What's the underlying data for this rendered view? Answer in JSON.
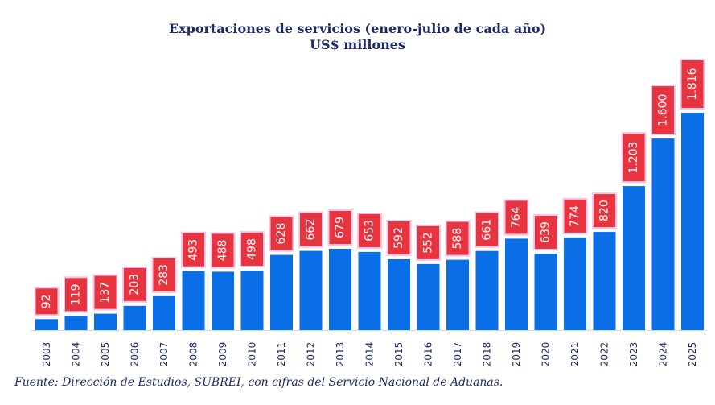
{
  "chart_data": {
    "type": "bar",
    "title": "Exportaciones de servicios (enero-julio de cada año)",
    "subtitle": "US$ millones",
    "categories": [
      "2003",
      "2004",
      "2005",
      "2006",
      "2007",
      "2008",
      "2009",
      "2010",
      "2011",
      "2012",
      "2013",
      "2014",
      "2015",
      "2016",
      "2017",
      "2018",
      "2019",
      "2020",
      "2021",
      "2022",
      "2023",
      "2024",
      "2025"
    ],
    "values": [
      92,
      119,
      137,
      203,
      283,
      493,
      488,
      498,
      628,
      662,
      679,
      653,
      592,
      552,
      588,
      661,
      764,
      639,
      774,
      820,
      1203,
      1600,
      1816
    ],
    "value_labels": [
      "92",
      "119",
      "137",
      "203",
      "283",
      "493",
      "488",
      "498",
      "628",
      "662",
      "679",
      "653",
      "592",
      "552",
      "588",
      "661",
      "764",
      "639",
      "774",
      "820",
      "1.203",
      "1.600",
      "1.816"
    ],
    "ylim": [
      0,
      1816
    ],
    "grid": false,
    "bar_color": "#0a6ee6",
    "label_box_color": "#e8343f",
    "label_text_color": "#ffffff"
  },
  "source_note": "Fuente: Dirección de Estudios, SUBREI, con cifras del Servicio Nacional de Aduanas."
}
